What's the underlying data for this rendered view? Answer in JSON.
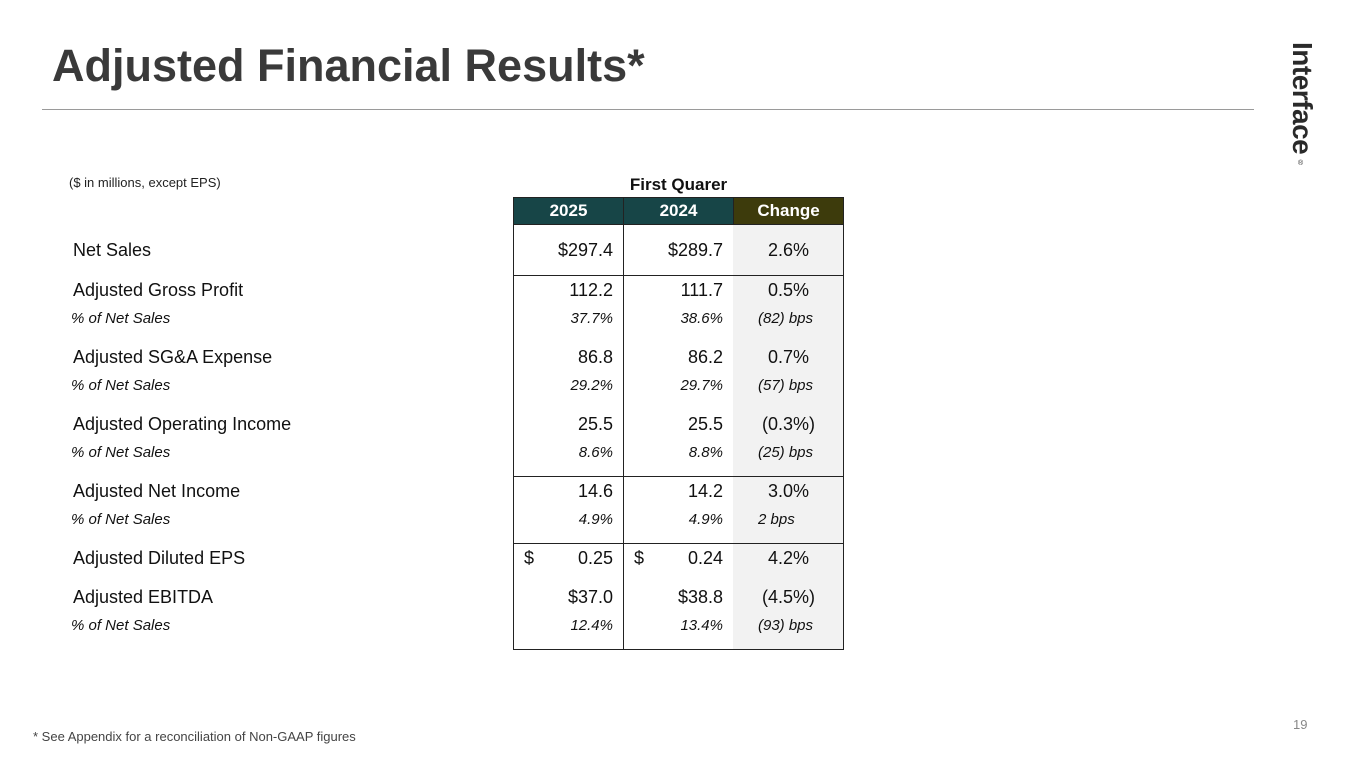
{
  "slide": {
    "title": "Adjusted Financial Results*",
    "logo": "Interface",
    "logo_mark": "®",
    "units_note": "($ in millions, except EPS)",
    "footnote": "* See Appendix for a reconciliation of Non-GAAP figures",
    "page_number": "19"
  },
  "table": {
    "group_header": "First Quarer",
    "columns": [
      "2025",
      "2024",
      "Change"
    ],
    "header_colors": {
      "year": "#174547",
      "change": "#3d3b0c"
    },
    "rows": {
      "net_sales": {
        "label": "Net Sales",
        "v2025": "$297.4",
        "v2024": "$289.7",
        "change": "2.6%"
      },
      "gross_profit": {
        "label": "Adjusted Gross Profit",
        "v2025": "112.2",
        "v2024": "111.7",
        "change": "0.5%",
        "sub_label": "% of Net Sales",
        "s2025": "37.7%",
        "s2024": "38.6%",
        "schange": "(82) bps"
      },
      "sga": {
        "label": "Adjusted SG&A Expense",
        "v2025": "86.8",
        "v2024": "86.2",
        "change": "0.7%",
        "sub_label": "% of Net Sales",
        "s2025": "29.2%",
        "s2024": "29.7%",
        "schange": "(57) bps"
      },
      "operating_income": {
        "label": "Adjusted Operating Income",
        "v2025": "25.5",
        "v2024": "25.5",
        "change": "(0.3%)",
        "sub_label": "% of Net Sales",
        "s2025": "8.6%",
        "s2024": "8.8%",
        "schange": "(25) bps"
      },
      "net_income": {
        "label": "Adjusted Net Income",
        "v2025": "14.6",
        "v2024": "14.2",
        "change": "3.0%",
        "sub_label": "% of Net Sales",
        "s2025": "4.9%",
        "s2024": "4.9%",
        "schange": "2 bps"
      },
      "eps": {
        "label": "Adjusted Diluted EPS",
        "currency": "$",
        "v2025": "0.25",
        "v2024": "0.24",
        "change": "4.2%"
      },
      "ebitda": {
        "label": "Adjusted EBITDA",
        "v2025": "$37.0",
        "v2024": "$38.8",
        "change": "(4.5%)",
        "sub_label": "% of Net Sales",
        "s2025": "12.4%",
        "s2024": "13.4%",
        "schange": "(93) bps"
      }
    }
  }
}
